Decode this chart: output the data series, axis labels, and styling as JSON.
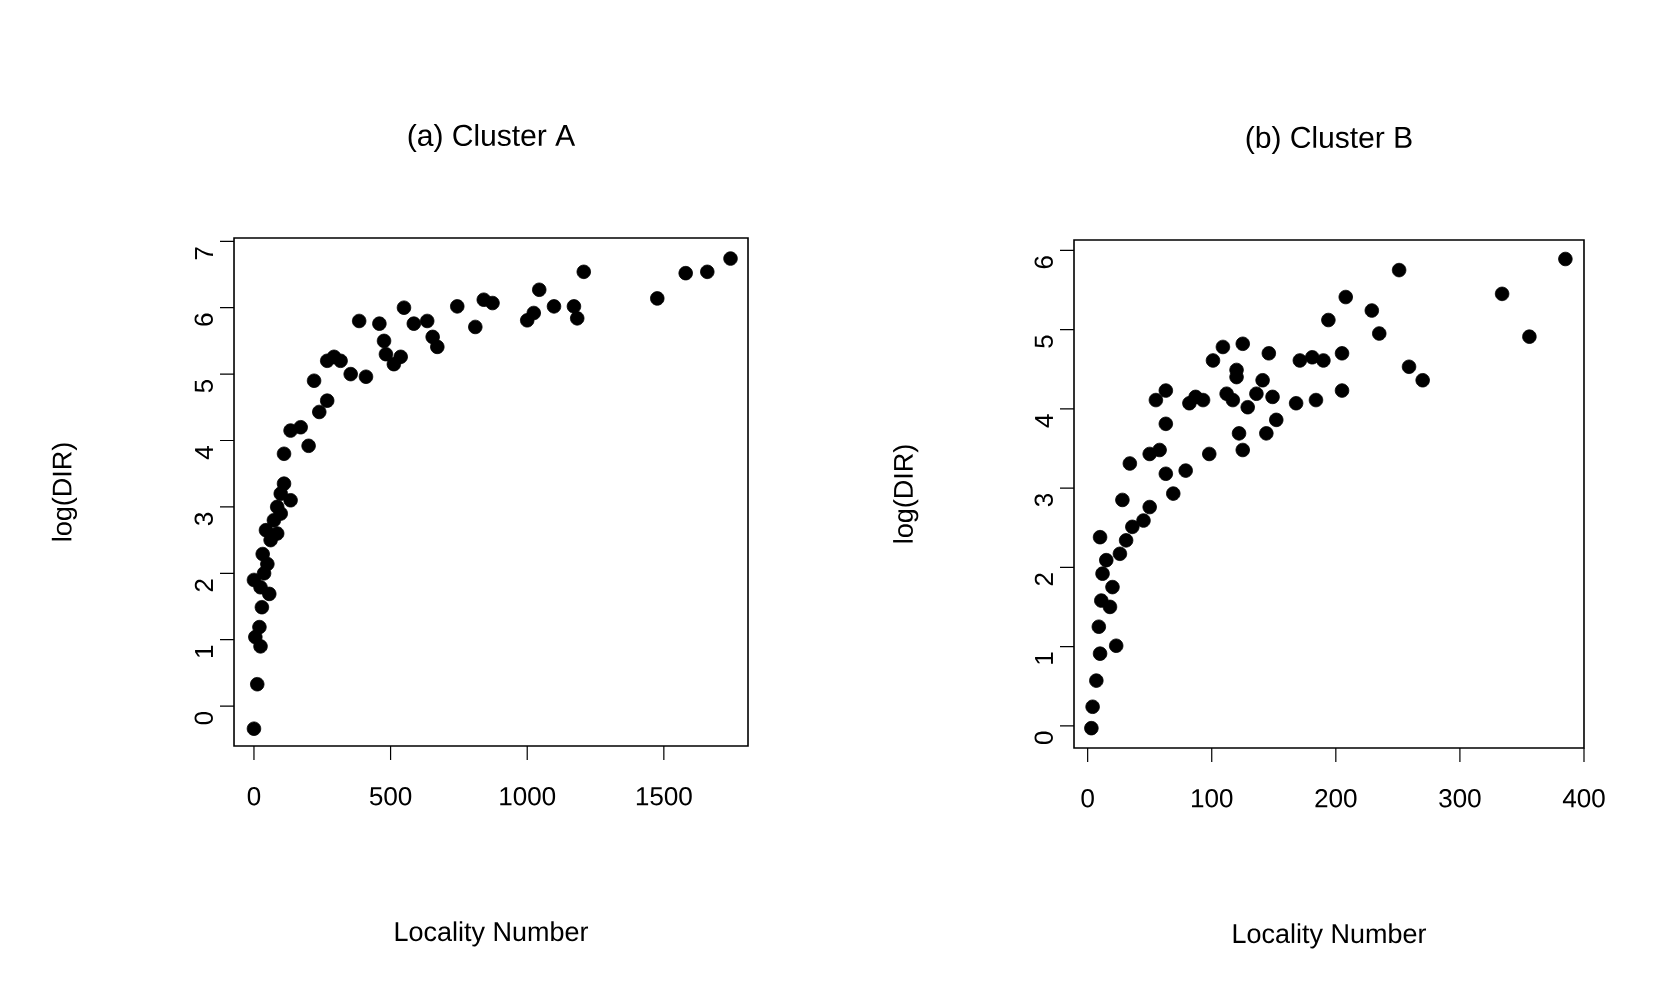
{
  "chart_data": [
    {
      "type": "scatter",
      "title": "(a) Cluster A",
      "xlabel": "Locality Number",
      "ylabel": "log(DIR)",
      "color": "#000000",
      "marker": "circle",
      "xlim": [
        -73,
        1808
      ],
      "ylim": [
        -0.6,
        7.05
      ],
      "xticks": [
        0,
        500,
        1000,
        1500
      ],
      "yticks": [
        0,
        1,
        2,
        3,
        4,
        5,
        6,
        7
      ],
      "x": [
        0,
        12,
        24,
        5,
        0,
        20,
        29,
        24,
        37,
        49,
        32,
        61,
        44,
        73,
        85,
        98,
        110,
        134,
        85,
        56,
        98,
        110,
        134,
        171,
        200,
        220,
        239,
        268,
        268,
        293,
        317,
        354,
        410,
        385,
        459,
        476,
        483,
        512,
        537,
        549,
        585,
        634,
        654,
        671,
        744,
        810,
        841,
        873,
        1000,
        1024,
        1044,
        1098,
        1171,
        1183,
        1207,
        1476,
        1580,
        1659,
        1744
      ],
      "values": [
        -0.34,
        0.33,
        0.9,
        1.04,
        1.9,
        1.19,
        1.49,
        1.79,
        2.0,
        2.14,
        2.29,
        2.5,
        2.65,
        2.8,
        3.0,
        3.2,
        3.35,
        3.1,
        2.6,
        1.69,
        2.9,
        3.8,
        4.15,
        4.2,
        3.92,
        4.9,
        4.43,
        4.6,
        5.2,
        5.26,
        5.2,
        5.0,
        4.96,
        5.8,
        5.76,
        5.5,
        5.3,
        5.15,
        5.26,
        6.0,
        5.76,
        5.8,
        5.56,
        5.41,
        6.02,
        5.71,
        6.12,
        6.07,
        5.81,
        5.92,
        6.27,
        6.02,
        6.02,
        5.84,
        6.54,
        6.14,
        6.52,
        6.54,
        6.74
      ]
    },
    {
      "type": "scatter",
      "title": "(b) Cluster B",
      "xlabel": "Locality Number",
      "ylabel": "log(DIR)",
      "color": "#000000",
      "marker": "circle",
      "xlim": [
        -11,
        400
      ],
      "ylim": [
        -0.28,
        6.13
      ],
      "xticks": [
        0,
        100,
        200,
        300,
        400
      ],
      "yticks": [
        0,
        1,
        2,
        3,
        4,
        5,
        6
      ],
      "x": [
        3,
        4,
        7,
        10,
        9,
        23,
        11,
        12,
        10,
        15,
        20,
        18,
        26,
        31,
        36,
        28,
        45,
        50,
        34,
        50,
        55,
        63,
        58,
        63,
        63,
        69,
        79,
        98,
        87,
        82,
        93,
        101,
        109,
        120,
        120,
        117,
        125,
        129,
        122,
        125,
        144,
        152,
        146,
        141,
        149,
        168,
        171,
        184,
        181,
        190,
        194,
        205,
        205,
        208,
        229,
        235,
        251,
        259,
        270,
        334,
        356,
        385,
        112,
        136
      ],
      "values": [
        -0.03,
        0.24,
        0.57,
        0.91,
        1.25,
        1.01,
        1.58,
        1.92,
        2.38,
        2.09,
        1.75,
        1.5,
        2.17,
        2.34,
        2.51,
        2.85,
        2.59,
        2.76,
        3.31,
        3.43,
        4.11,
        4.23,
        3.48,
        3.81,
        3.18,
        2.93,
        3.22,
        3.43,
        4.15,
        4.07,
        4.11,
        4.61,
        4.78,
        4.49,
        4.4,
        4.11,
        4.82,
        4.02,
        3.69,
        3.48,
        3.69,
        3.86,
        4.7,
        4.36,
        4.15,
        4.07,
        4.61,
        4.11,
        4.65,
        4.61,
        5.12,
        4.23,
        4.7,
        5.41,
        5.24,
        4.95,
        5.75,
        4.53,
        4.36,
        5.45,
        4.91,
        5.89,
        4.19,
        4.19
      ]
    }
  ]
}
